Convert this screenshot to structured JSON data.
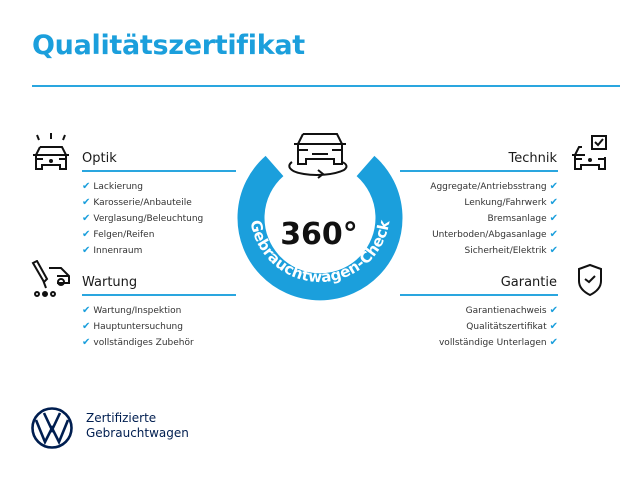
{
  "title": "Qualitätszertifikat",
  "center": {
    "value": "360°",
    "ring_text": "Gebrauchtwagen-Check",
    "ring_color": "#1b9fdc"
  },
  "sections": {
    "optik": {
      "title": "Optik",
      "items": [
        "Lackierung",
        "Karosserie/Anbauteile",
        "Verglasung/Beleuchtung",
        "Felgen/Reifen",
        "Innenraum"
      ]
    },
    "wartung": {
      "title": "Wartung",
      "items": [
        "Wartung/Inspektion",
        "Hauptuntersuchung",
        "vollständiges Zubehör"
      ]
    },
    "technik": {
      "title": "Technik",
      "items": [
        "Aggregate/Antriebsstrang",
        "Lenkung/Fahrwerk",
        "Bremsanlage",
        "Unterboden/Abgasanlage",
        "Sicherheit/Elektrik"
      ]
    },
    "garantie": {
      "title": "Garantie",
      "items": [
        "Garantienachweis",
        "Qualitätszertifikat",
        "vollständige Unterlagen"
      ]
    }
  },
  "check_glyph": "✔",
  "brand": {
    "line1": "Zertifizierte",
    "line2": "Gebrauchtwagen",
    "logo_color": "#001e50"
  },
  "colors": {
    "accent": "#1b9fdc",
    "brand": "#001e50"
  }
}
